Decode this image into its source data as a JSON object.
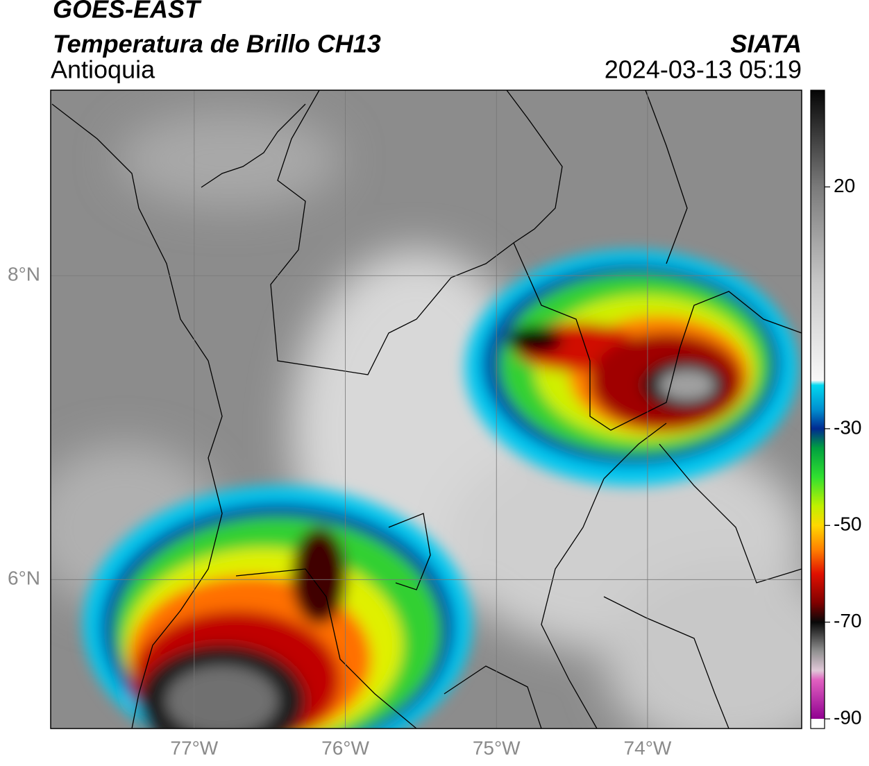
{
  "header": {
    "title": "GOES-EAST",
    "subtitle": "Temperatura de Brillo CH13",
    "region": "Antioquia",
    "source": "SIATA",
    "datetime": "2024-03-13 05:19"
  },
  "map": {
    "xlim": [
      -77.95,
      -72.98
    ],
    "ylim": [
      5.02,
      9.22
    ],
    "xticks": [
      {
        "value": -77,
        "label": "77°W"
      },
      {
        "value": -76,
        "label": "76°W"
      },
      {
        "value": -75,
        "label": "75°W"
      },
      {
        "value": -74,
        "label": "74°W"
      }
    ],
    "yticks": [
      {
        "value": 8,
        "label": "8°N"
      },
      {
        "value": 6,
        "label": "6°N"
      }
    ],
    "grid": true,
    "colorbar": {
      "lim": [
        -92,
        40
      ],
      "ticks": [
        20,
        -30,
        -50,
        -70,
        -90
      ],
      "stops": [
        [
          40,
          "#050505"
        ],
        [
          20,
          "#7a7a7a"
        ],
        [
          0,
          "#c8c8c8"
        ],
        [
          -20,
          "#f8f8f8"
        ],
        [
          -21,
          "#00d8f0"
        ],
        [
          -26,
          "#0090d0"
        ],
        [
          -30,
          "#002a90"
        ],
        [
          -34,
          "#00a040"
        ],
        [
          -40,
          "#30e030"
        ],
        [
          -46,
          "#c0f000"
        ],
        [
          -50,
          "#ffd800"
        ],
        [
          -55,
          "#ff8000"
        ],
        [
          -60,
          "#e01000"
        ],
        [
          -66,
          "#800000"
        ],
        [
          -70,
          "#080808"
        ],
        [
          -76,
          "#909090"
        ],
        [
          -80,
          "#e0c8d8"
        ],
        [
          -82,
          "#e060c0"
        ],
        [
          -90,
          "#900090"
        ],
        [
          -90.01,
          "#ffffff"
        ],
        [
          -92,
          "#ffffff"
        ]
      ]
    }
  }
}
